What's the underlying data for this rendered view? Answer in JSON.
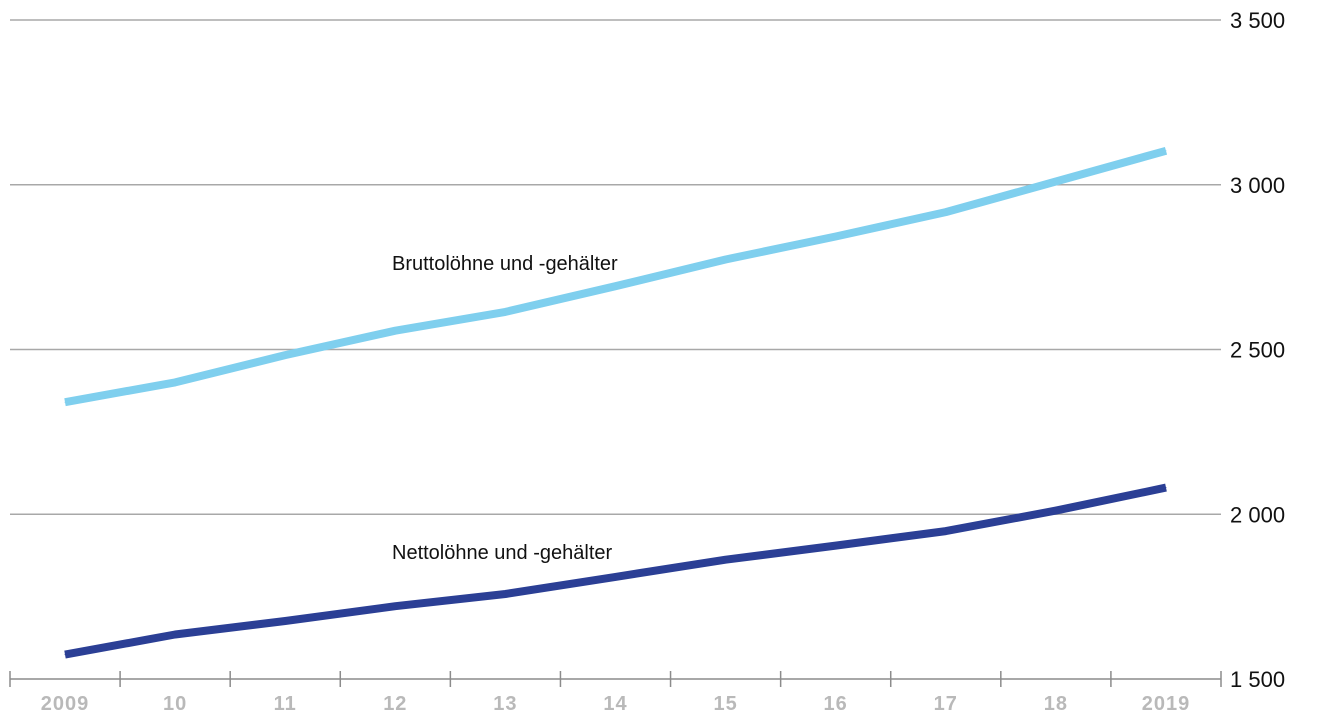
{
  "chart_data": {
    "type": "line",
    "title": "",
    "xlabel": "",
    "ylabel": "",
    "categories": [
      "2009",
      "10",
      "11",
      "12",
      "13",
      "14",
      "15",
      "16",
      "17",
      "18",
      "2019"
    ],
    "ylim": [
      1500,
      3500
    ],
    "yticks": [
      1500,
      2000,
      2500,
      3000,
      3500
    ],
    "ytick_labels": [
      "1 500",
      "2 000",
      "2 500",
      "3 000",
      "3 500"
    ],
    "grid": true,
    "y_axis_side": "right",
    "series": [
      {
        "name": "Bruttolöhne und -gehälter",
        "color": "#7fcfee",
        "values": [
          2340,
          2400,
          2483,
          2557,
          2614,
          2692,
          2773,
          2843,
          2917,
          3010,
          3103
        ]
      },
      {
        "name": "Nettolöhne und -gehälter",
        "color": "#2b3f95",
        "values": [
          1574,
          1635,
          1676,
          1721,
          1758,
          1810,
          1862,
          1905,
          1949,
          2011,
          2081
        ]
      }
    ]
  }
}
